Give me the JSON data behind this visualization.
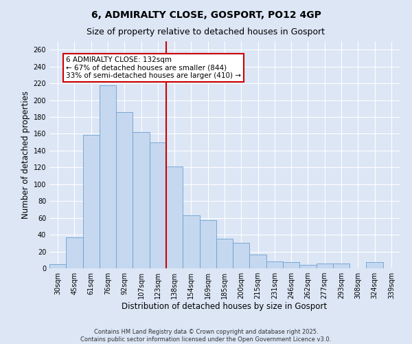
{
  "title": "6, ADMIRALTY CLOSE, GOSPORT, PO12 4GP",
  "subtitle": "Size of property relative to detached houses in Gosport",
  "xlabel": "Distribution of detached houses by size in Gosport",
  "ylabel": "Number of detached properties",
  "footer1": "Contains HM Land Registry data © Crown copyright and database right 2025.",
  "footer2": "Contains public sector information licensed under the Open Government Licence v3.0.",
  "categories": [
    "30sqm",
    "45sqm",
    "61sqm",
    "76sqm",
    "92sqm",
    "107sqm",
    "123sqm",
    "138sqm",
    "154sqm",
    "169sqm",
    "185sqm",
    "200sqm",
    "215sqm",
    "231sqm",
    "246sqm",
    "262sqm",
    "277sqm",
    "293sqm",
    "308sqm",
    "324sqm",
    "339sqm"
  ],
  "values": [
    5,
    37,
    159,
    218,
    186,
    162,
    150,
    121,
    63,
    57,
    35,
    30,
    16,
    8,
    7,
    4,
    6,
    6,
    0,
    7,
    0
  ],
  "bar_color": "#c5d8f0",
  "bar_edge_color": "#6b9fcf",
  "ref_line_index": 7,
  "ref_line_label": "6 ADMIRALTY CLOSE: 132sqm",
  "annot_line1": "← 67% of detached houses are smaller (844)",
  "annot_line2": "33% of semi-detached houses are larger (410) →",
  "ylim": [
    0,
    270
  ],
  "yticks": [
    0,
    20,
    40,
    60,
    80,
    100,
    120,
    140,
    160,
    180,
    200,
    220,
    240,
    260
  ],
  "bg_color": "#dce6f5",
  "plot_bg_color": "#dce6f5",
  "grid_color": "#ffffff",
  "annot_box_facecolor": "#ffffff",
  "annot_box_edgecolor": "#cc0000",
  "ref_line_color": "#cc0000",
  "title_fontsize": 10,
  "subtitle_fontsize": 9,
  "axis_label_fontsize": 8.5,
  "tick_fontsize": 7,
  "annot_fontsize": 7.5,
  "footer_fontsize": 6
}
